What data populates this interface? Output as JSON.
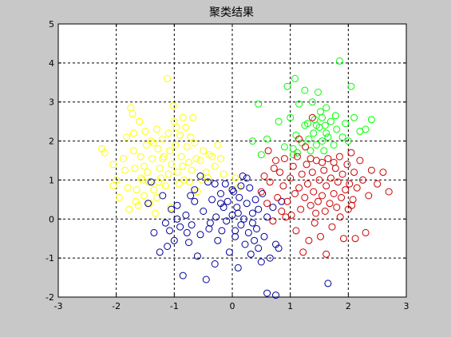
{
  "figure": {
    "background": "#c8c8c8"
  },
  "chart_data": {
    "type": "scatter",
    "title": "聚类结果",
    "xlabel": "",
    "ylabel": "",
    "xlim": [
      -3,
      3
    ],
    "ylim": [
      -2,
      5
    ],
    "xticks": [
      "-3",
      "-2",
      "-1",
      "0",
      "1",
      "2",
      "3"
    ],
    "yticks": [
      "-2",
      "-1",
      "0",
      "1",
      "2",
      "3",
      "4",
      "5"
    ],
    "grid": true,
    "marker": "circle-open",
    "series": [
      {
        "color": "#ffff00",
        "points": [
          [
            -2.25,
            1.8
          ],
          [
            -2.2,
            1.7
          ],
          [
            -2.05,
            1.4
          ],
          [
            -2.0,
            1.0
          ],
          [
            -2.05,
            0.85
          ],
          [
            -1.85,
            1.25
          ],
          [
            -1.8,
            0.8
          ],
          [
            -1.78,
            0.25
          ],
          [
            -1.75,
            2.85
          ],
          [
            -1.72,
            2.7
          ],
          [
            -1.7,
            1.75
          ],
          [
            -1.68,
            1.3
          ],
          [
            -1.65,
            0.75
          ],
          [
            -1.62,
            0.35
          ],
          [
            -1.6,
            2.5
          ],
          [
            -1.58,
            1.6
          ],
          [
            -1.55,
            1.0
          ],
          [
            -1.52,
            0.6
          ],
          [
            -1.5,
            2.25
          ],
          [
            -1.48,
            1.9
          ],
          [
            -1.46,
            1.2
          ],
          [
            -1.44,
            0.95
          ],
          [
            -1.42,
            0.4
          ],
          [
            -1.4,
            2.0
          ],
          [
            -1.38,
            1.55
          ],
          [
            -1.35,
            0.75
          ],
          [
            -1.33,
            0.15
          ],
          [
            -1.3,
            2.3
          ],
          [
            -1.28,
            1.8
          ],
          [
            -1.25,
            1.3
          ],
          [
            -1.23,
            1.05
          ],
          [
            -1.2,
            2.05
          ],
          [
            -1.18,
            1.6
          ],
          [
            -1.15,
            0.85
          ],
          [
            -1.12,
            3.6
          ],
          [
            -1.1,
            2.2
          ],
          [
            -1.08,
            1.75
          ],
          [
            -1.05,
            1.4
          ],
          [
            -1.02,
            2.9
          ],
          [
            -1.0,
            2.5
          ],
          [
            -0.98,
            1.9
          ],
          [
            -0.95,
            1.2
          ],
          [
            -0.92,
            0.9
          ],
          [
            -0.9,
            2.15
          ],
          [
            -0.88,
            1.6
          ],
          [
            -0.85,
            2.6
          ],
          [
            -0.83,
            1.0
          ],
          [
            -0.8,
            2.35
          ],
          [
            -0.78,
            1.85
          ],
          [
            -0.75,
            1.45
          ],
          [
            -0.72,
            2.1
          ],
          [
            -0.7,
            1.25
          ],
          [
            -0.68,
            2.6
          ],
          [
            -0.65,
            1.95
          ],
          [
            -0.6,
            0.7
          ],
          [
            -0.55,
            1.5
          ],
          [
            -0.5,
            1.75
          ],
          [
            -0.45,
            1.2
          ],
          [
            -0.42,
            1.05
          ],
          [
            -0.35,
            1.6
          ],
          [
            -0.3,
            1.35
          ],
          [
            -0.25,
            1.9
          ],
          [
            -1.95,
            0.55
          ],
          [
            -1.88,
            1.55
          ],
          [
            -1.82,
            2.1
          ],
          [
            -1.7,
            2.2
          ],
          [
            -1.66,
            0.45
          ],
          [
            -1.57,
            1.05
          ],
          [
            -1.52,
            1.35
          ],
          [
            -1.36,
            1.95
          ],
          [
            -1.3,
            0.55
          ],
          [
            -1.27,
            0.95
          ],
          [
            -1.2,
            1.55
          ],
          [
            -1.1,
            1.15
          ],
          [
            -1.06,
            0.3
          ],
          [
            -0.96,
            2.35
          ],
          [
            -0.86,
            1.35
          ],
          [
            -0.74,
            0.95
          ],
          [
            -0.62,
            1.55
          ],
          [
            -0.52,
            1.0
          ],
          [
            -0.4,
            1.65
          ],
          [
            -0.2,
            1.55
          ],
          [
            -0.15,
            1.15
          ],
          [
            0.05,
            1.05
          ],
          [
            0.1,
            0.8
          ]
        ]
      },
      {
        "color": "#000099",
        "points": [
          [
            -1.45,
            0.4
          ],
          [
            -1.4,
            0.95
          ],
          [
            -1.35,
            -0.35
          ],
          [
            -1.25,
            -0.85
          ],
          [
            -1.2,
            0.6
          ],
          [
            -1.15,
            -0.1
          ],
          [
            -1.08,
            -0.3
          ],
          [
            -1.05,
            0.25
          ],
          [
            -1.0,
            -0.55
          ],
          [
            -0.95,
            0.35
          ],
          [
            -0.9,
            -0.2
          ],
          [
            -0.85,
            -1.45
          ],
          [
            -0.8,
            0.1
          ],
          [
            -0.75,
            -0.6
          ],
          [
            -0.72,
            0.6
          ],
          [
            -0.7,
            -0.15
          ],
          [
            -0.65,
            0.45
          ],
          [
            -0.6,
            -0.95
          ],
          [
            -0.55,
            -0.4
          ],
          [
            -0.5,
            0.2
          ],
          [
            -0.45,
            -1.55
          ],
          [
            -0.42,
            0.95
          ],
          [
            -0.4,
            -0.25
          ],
          [
            -0.35,
            0.5
          ],
          [
            -0.3,
            -1.15
          ],
          [
            -0.28,
            0.05
          ],
          [
            -0.25,
            -0.55
          ],
          [
            -0.2,
            0.65
          ],
          [
            -0.18,
            -0.3
          ],
          [
            -0.15,
            0.3
          ],
          [
            -0.12,
            0.9
          ],
          [
            -0.1,
            -0.05
          ],
          [
            -0.08,
            0.45
          ],
          [
            -0.05,
            -0.85
          ],
          [
            0.0,
            0.1
          ],
          [
            0.02,
            0.7
          ],
          [
            0.05,
            -0.45
          ],
          [
            0.08,
            0.3
          ],
          [
            0.1,
            -1.25
          ],
          [
            0.12,
            0.55
          ],
          [
            0.15,
            -0.15
          ],
          [
            0.18,
            1.1
          ],
          [
            0.2,
            0.0
          ],
          [
            0.22,
            -0.65
          ],
          [
            0.25,
            0.4
          ],
          [
            0.28,
            -0.35
          ],
          [
            0.3,
            0.8
          ],
          [
            0.32,
            -0.9
          ],
          [
            0.35,
            0.15
          ],
          [
            0.38,
            -0.55
          ],
          [
            0.4,
            0.5
          ],
          [
            0.42,
            -0.25
          ],
          [
            0.45,
            0.25
          ],
          [
            0.5,
            -1.1
          ],
          [
            0.52,
            0.65
          ],
          [
            0.55,
            -0.45
          ],
          [
            0.6,
            0.05
          ],
          [
            0.65,
            -1.0
          ],
          [
            0.7,
            0.3
          ],
          [
            0.75,
            -0.65
          ],
          [
            0.8,
            -0.75
          ],
          [
            0.85,
            0.45
          ],
          [
            0.6,
            -1.9
          ],
          [
            0.75,
            -1.95
          ],
          [
            1.65,
            -1.65
          ],
          [
            -0.95,
            0.0
          ],
          [
            -0.55,
            1.1
          ],
          [
            -0.3,
            0.9
          ],
          [
            0.0,
            0.75
          ],
          [
            0.1,
            0.15
          ],
          [
            0.35,
            -0.1
          ],
          [
            -0.65,
            0.75
          ],
          [
            -0.2,
            0.4
          ],
          [
            0.25,
            1.05
          ],
          [
            -1.12,
            -0.7
          ],
          [
            0.45,
            -0.75
          ],
          [
            -0.38,
            -0.1
          ],
          [
            0.15,
            0.85
          ],
          [
            -0.78,
            -0.35
          ],
          [
            0.05,
            -0.3
          ]
        ]
      },
      {
        "color": "#00ff00",
        "points": [
          [
            0.45,
            2.95
          ],
          [
            0.5,
            1.65
          ],
          [
            0.6,
            2.05
          ],
          [
            0.8,
            2.5
          ],
          [
            0.9,
            1.85
          ],
          [
            0.95,
            3.4
          ],
          [
            1.0,
            2.6
          ],
          [
            1.05,
            1.8
          ],
          [
            1.08,
            3.6
          ],
          [
            1.1,
            2.15
          ],
          [
            1.12,
            1.7
          ],
          [
            1.15,
            2.95
          ],
          [
            1.2,
            1.95
          ],
          [
            1.25,
            3.3
          ],
          [
            1.3,
            2.45
          ],
          [
            1.35,
            1.75
          ],
          [
            1.38,
            3.0
          ],
          [
            1.4,
            2.2
          ],
          [
            1.42,
            2.55
          ],
          [
            1.45,
            1.9
          ],
          [
            1.48,
            3.25
          ],
          [
            1.5,
            2.35
          ],
          [
            1.52,
            2.75
          ],
          [
            1.55,
            2.0
          ],
          [
            1.58,
            1.75
          ],
          [
            1.6,
            2.4
          ],
          [
            1.62,
            2.85
          ],
          [
            1.65,
            2.1
          ],
          [
            1.7,
            2.5
          ],
          [
            1.75,
            1.9
          ],
          [
            1.8,
            2.3
          ],
          [
            1.85,
            4.05
          ],
          [
            1.9,
            2.1
          ],
          [
            1.95,
            2.45
          ],
          [
            2.05,
            3.4
          ],
          [
            2.1,
            2.6
          ],
          [
            2.2,
            2.25
          ],
          [
            2.3,
            2.3
          ],
          [
            2.4,
            2.55
          ],
          [
            0.35,
            2.0
          ],
          [
            1.05,
            1.65
          ],
          [
            1.32,
            2.05
          ],
          [
            1.55,
            2.6
          ],
          [
            1.62,
            2.2
          ],
          [
            1.78,
            2.65
          ],
          [
            2.0,
            2.0
          ],
          [
            1.25,
            2.4
          ],
          [
            1.45,
            2.4
          ]
        ]
      },
      {
        "color": "#cc0000",
        "points": [
          [
            0.5,
            0.7
          ],
          [
            0.55,
            1.1
          ],
          [
            0.6,
            0.4
          ],
          [
            0.65,
            0.95
          ],
          [
            0.7,
            -0.05
          ],
          [
            0.75,
            1.5
          ],
          [
            0.78,
            0.55
          ],
          [
            0.82,
            1.2
          ],
          [
            0.85,
            0.2
          ],
          [
            0.88,
            0.85
          ],
          [
            0.9,
            1.55
          ],
          [
            0.95,
            0.45
          ],
          [
            1.0,
            1.05
          ],
          [
            1.02,
            0.1
          ],
          [
            1.05,
            1.35
          ],
          [
            1.08,
            0.65
          ],
          [
            1.1,
            -0.3
          ],
          [
            1.12,
            1.6
          ],
          [
            1.15,
            0.8
          ],
          [
            1.18,
            0.25
          ],
          [
            1.2,
            1.15
          ],
          [
            1.22,
            -0.85
          ],
          [
            1.25,
            0.55
          ],
          [
            1.28,
            1.4
          ],
          [
            1.3,
            0.9
          ],
          [
            1.32,
            -0.55
          ],
          [
            1.35,
            0.35
          ],
          [
            1.38,
            1.2
          ],
          [
            1.4,
            0.7
          ],
          [
            1.42,
            -0.1
          ],
          [
            1.45,
            1.5
          ],
          [
            1.48,
            0.45
          ],
          [
            1.5,
            1.0
          ],
          [
            1.52,
            -0.45
          ],
          [
            1.55,
            0.6
          ],
          [
            1.58,
            1.25
          ],
          [
            1.6,
            0.2
          ],
          [
            1.62,
            0.85
          ],
          [
            1.65,
            1.55
          ],
          [
            1.68,
            0.4
          ],
          [
            1.7,
            1.05
          ],
          [
            1.72,
            -0.2
          ],
          [
            1.75,
            0.65
          ],
          [
            1.78,
            1.3
          ],
          [
            1.8,
            0.3
          ],
          [
            1.82,
            0.95
          ],
          [
            1.85,
            1.6
          ],
          [
            1.88,
            0.55
          ],
          [
            1.9,
            1.15
          ],
          [
            1.92,
            -0.5
          ],
          [
            1.95,
            0.75
          ],
          [
            1.98,
            1.4
          ],
          [
            2.0,
            0.25
          ],
          [
            2.02,
            0.9
          ],
          [
            2.05,
            1.7
          ],
          [
            2.08,
            0.5
          ],
          [
            2.1,
            1.2
          ],
          [
            2.12,
            -0.5
          ],
          [
            2.15,
            0.8
          ],
          [
            2.2,
            1.5
          ],
          [
            2.25,
            1.0
          ],
          [
            2.3,
            -0.35
          ],
          [
            2.35,
            0.6
          ],
          [
            2.4,
            1.25
          ],
          [
            2.5,
            0.9
          ],
          [
            2.6,
            1.2
          ],
          [
            2.7,
            0.7
          ],
          [
            1.38,
            2.6
          ],
          [
            1.15,
            2.05
          ],
          [
            0.62,
            1.75
          ],
          [
            0.72,
            1.3
          ],
          [
            0.92,
            0.05
          ],
          [
            1.26,
            1.85
          ],
          [
            1.44,
            0.15
          ],
          [
            1.62,
            -0.9
          ],
          [
            1.86,
            0.05
          ],
          [
            2.06,
            0.35
          ],
          [
            1.35,
            1.55
          ],
          [
            1.55,
            1.45
          ],
          [
            1.75,
            1.45
          ]
        ]
      }
    ]
  }
}
